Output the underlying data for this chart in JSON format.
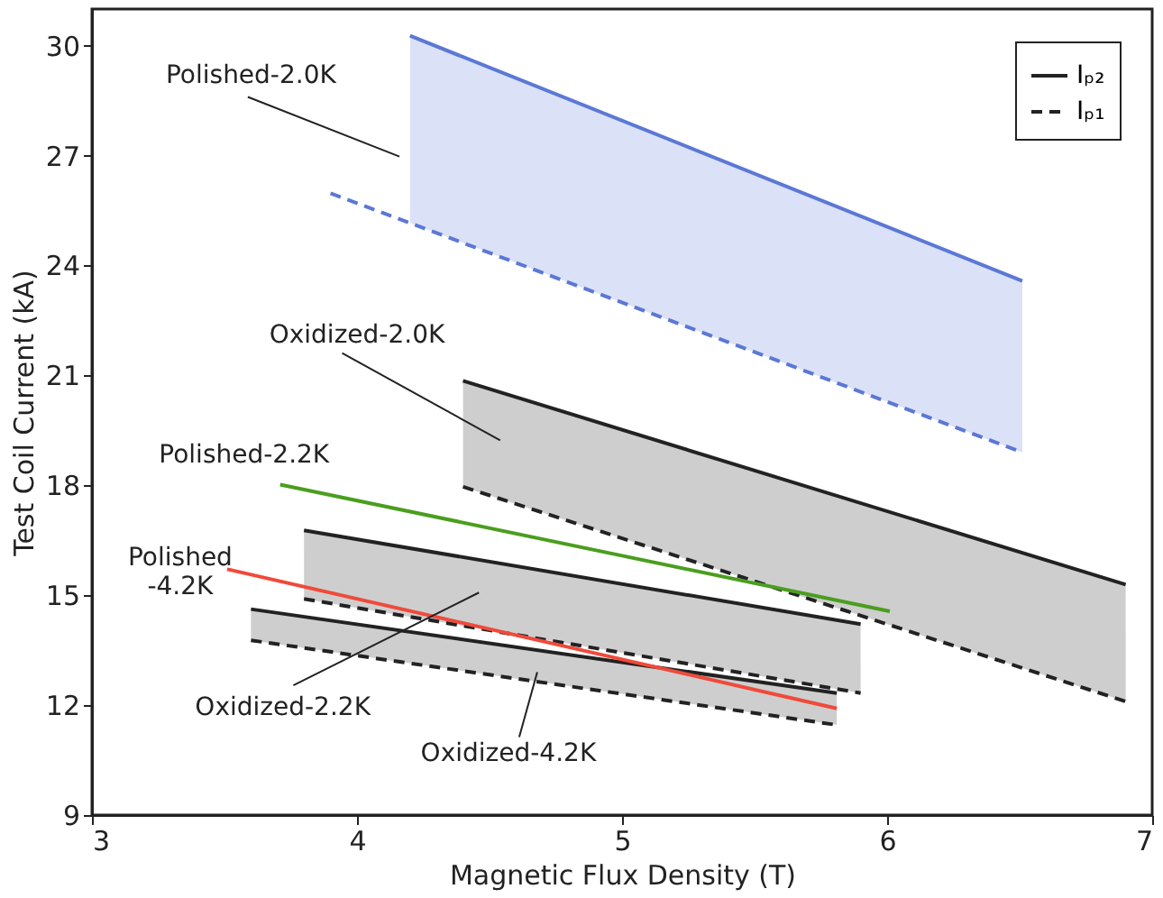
{
  "chart_data": {
    "type": "line",
    "xlabel": "Magnetic Flux Density (T)",
    "ylabel": "Test Coil Current (kA)",
    "xlim": [
      3,
      7
    ],
    "xticks": [
      3,
      4,
      5,
      6,
      7
    ],
    "ylim": [
      9,
      31
    ],
    "yticks": [
      9,
      12,
      15,
      18,
      21,
      24,
      27,
      30
    ],
    "grid": false,
    "legend": "top right",
    "series": [
      {
        "color": "#5b78d6",
        "line_style": "solid",
        "x": [
          4.2,
          6.51
        ],
        "values": [
          30.27,
          23.58
        ],
        "lower": [
          25.16,
          18.9
        ],
        "upper": [
          30.27,
          23.58
        ]
      },
      {
        "color": "#5b78d6",
        "line_style": "dashed",
        "x": [
          3.9,
          6.51
        ],
        "values": [
          25.97,
          18.9
        ]
      },
      {
        "name": "Iₚ₂",
        "color": "#222222",
        "line_style": "solid",
        "x": [
          4.4,
          6.9
        ],
        "values": [
          20.85,
          15.29
        ],
        "lower": [
          17.96,
          12.1
        ],
        "upper": [
          20.85,
          15.29
        ]
      },
      {
        "name": "Iₚ₁",
        "color": "#222222",
        "line_style": "dashed",
        "x": [
          4.4,
          6.9
        ],
        "values": [
          17.96,
          12.1
        ]
      },
      {
        "color": "#222222",
        "line_style": "solid",
        "x": [
          3.8,
          5.9
        ],
        "values": [
          16.77,
          14.21
        ],
        "lower": [
          14.9,
          12.33
        ],
        "upper": [
          16.77,
          14.21
        ]
      },
      {
        "color": "#222222",
        "line_style": "dashed",
        "x": [
          3.8,
          5.9
        ],
        "values": [
          14.9,
          12.33
        ]
      },
      {
        "color": "#222222",
        "line_style": "solid",
        "x": [
          3.6,
          5.81
        ],
        "values": [
          14.62,
          12.33
        ],
        "lower": [
          13.77,
          11.46
        ],
        "upper": [
          14.62,
          12.33
        ]
      },
      {
        "color": "#222222",
        "line_style": "dashed",
        "x": [
          3.6,
          5.81
        ],
        "values": [
          13.77,
          11.46
        ]
      },
      {
        "color": "#4a9e1e",
        "line_style": "solid",
        "x": [
          3.71,
          6.01
        ],
        "values": [
          18.02,
          14.56
        ]
      },
      {
        "color": "#f04a3a",
        "line_style": "solid",
        "x": [
          3.51,
          5.81
        ],
        "values": [
          15.71,
          11.91
        ]
      }
    ],
    "annotations": [
      "Polished-2.0K",
      "Oxidized-2.0K",
      {
        "text": "Polished-2.2K",
        "x": 3.71,
        "y": 18.02
      },
      {
        "text": "Polished\n-4.2K",
        "x": 3.51,
        "y": 15.71
      },
      "Oxidized-2.2K",
      {
        "text": "Oxidized-4.2K",
        "x": 4.68,
        "y": 12.9
      }
    ]
  }
}
